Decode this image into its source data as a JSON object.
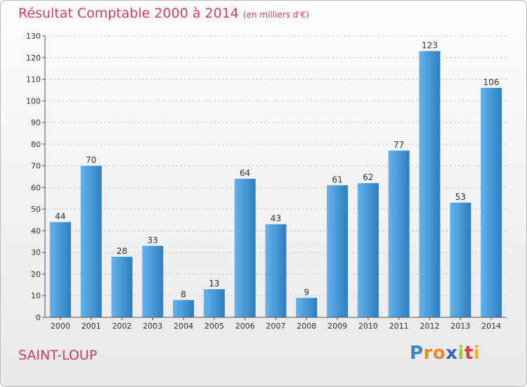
{
  "title": "Résultat Comptable 2000 à 2014",
  "subtitle": "(en milliers d'€)",
  "commune": "SAINT-LOUP",
  "brand": {
    "letters": [
      "P",
      "r",
      "o",
      "x",
      "i",
      "t",
      "i"
    ],
    "colors": [
      "#3a86c8",
      "#e8892c",
      "#e8892c",
      "#2b6fb6",
      "#9bc53d",
      "#d9413a",
      "#f0b429"
    ]
  },
  "colors": {
    "bar_light": "#63b3ec",
    "bar_dark": "#2e7ec0",
    "title": "#d23b62",
    "grid": "#d0d0d0"
  },
  "chart_data": {
    "type": "bar",
    "categories": [
      "2000",
      "2001",
      "2002",
      "2003",
      "2004",
      "2005",
      "2006",
      "2007",
      "2008",
      "2009",
      "2010",
      "2011",
      "2012",
      "2013",
      "2014"
    ],
    "values": [
      44,
      70,
      28,
      33,
      8,
      13,
      64,
      43,
      9,
      61,
      62,
      77,
      123,
      53,
      106
    ],
    "ylim": [
      0,
      130
    ],
    "yticks": [
      0,
      10,
      20,
      30,
      40,
      50,
      60,
      70,
      80,
      90,
      100,
      110,
      120,
      130
    ],
    "grid": true
  }
}
